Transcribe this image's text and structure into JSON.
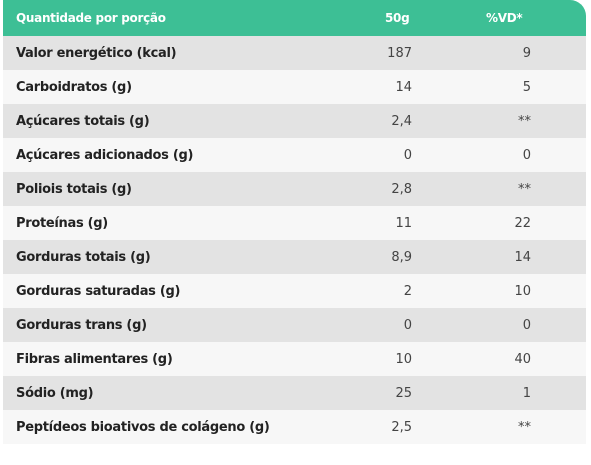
{
  "header": {
    "label": "Quantidade por porção",
    "value": "50g",
    "vd": "%VD*"
  },
  "rows": [
    {
      "label": "Valor energético (kcal)",
      "value": "187",
      "vd": "9"
    },
    {
      "label": "Carboidratos (g)",
      "value": "14",
      "vd": "5"
    },
    {
      "label": "Açúcares totais (g)",
      "value": "2,4",
      "vd": "**"
    },
    {
      "label": "Açúcares adicionados (g)",
      "value": "0",
      "vd": "0"
    },
    {
      "label": "Poliois totais (g)",
      "value": "2,8",
      "vd": "**"
    },
    {
      "label": "Proteínas (g)",
      "value": "11",
      "vd": "22"
    },
    {
      "label": "Gorduras totais (g)",
      "value": "8,9",
      "vd": "14"
    },
    {
      "label": "Gorduras saturadas (g)",
      "value": "2",
      "vd": "10"
    },
    {
      "label": "Gorduras trans (g)",
      "value": "0",
      "vd": "0"
    },
    {
      "label": "Fibras alimentares (g)",
      "value": "10",
      "vd": "40"
    },
    {
      "label": "Sódio (mg)",
      "value": "25",
      "vd": "1"
    },
    {
      "label": "Peptídeos bioativos de colágeno (g)",
      "value": "2,5",
      "vd": "**"
    }
  ],
  "colors": {
    "header_bg": "#3dbf95",
    "row_shade": "#e3e3e3",
    "row_plain": "#f7f7f7"
  }
}
